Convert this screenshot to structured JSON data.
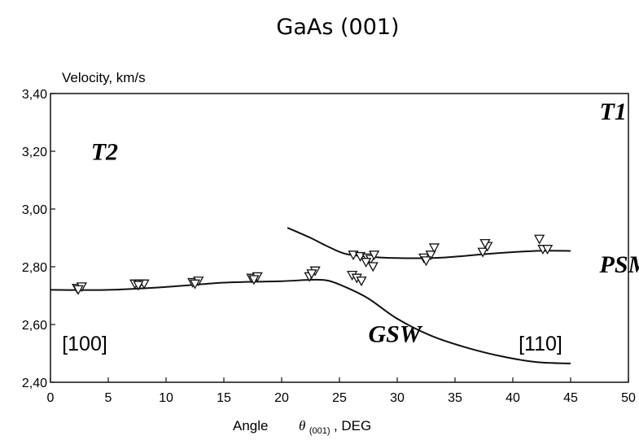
{
  "chart_data": {
    "type": "scatter",
    "title": "GaAs (001)",
    "ylabel": "Velocity, km/s",
    "xlabel_prefix": "Angle",
    "xlabel_symbol": "θ",
    "xlabel_subscript": "(001)",
    "xlabel_suffix": ", DEG",
    "xlim": [
      0,
      50
    ],
    "ylim": [
      2.4,
      3.4
    ],
    "x_ticks": [
      0,
      5,
      10,
      15,
      20,
      25,
      30,
      35,
      40,
      45,
      50
    ],
    "y_ticks": [
      2.4,
      2.6,
      2.8,
      3.0,
      3.2,
      3.4
    ],
    "y_tick_labels": [
      "2,40",
      "2,60",
      "2,80",
      "3,00",
      "3,20",
      "3,40"
    ],
    "grid": false,
    "marker": "open-triangle-down",
    "annotations": [
      {
        "text": "T1",
        "x": 47.5,
        "y": 3.31,
        "style": "bold"
      },
      {
        "text": "T2",
        "x": 3.5,
        "y": 3.17,
        "style": "bold"
      },
      {
        "text": "PSM",
        "x": 47.5,
        "y": 2.78,
        "style": "bold"
      },
      {
        "text": "GSW",
        "x": 27.5,
        "y": 2.54,
        "style": "bold"
      },
      {
        "text": "[100]",
        "x": 1.0,
        "y": 2.51,
        "style": "direction"
      },
      {
        "text": "[110]",
        "x": 40.5,
        "y": 2.51,
        "style": "direction"
      }
    ],
    "series": [
      {
        "kind": "line",
        "points": [
          [
            0,
            2.72
          ],
          [
            5,
            2.72
          ],
          [
            10,
            2.73
          ],
          [
            15,
            2.745
          ],
          [
            20,
            2.75
          ],
          [
            22.5,
            2.755
          ],
          [
            24,
            2.752
          ],
          [
            25.5,
            2.73
          ],
          [
            27.5,
            2.69
          ],
          [
            30,
            2.62
          ],
          [
            33,
            2.56
          ],
          [
            36,
            2.52
          ],
          [
            39,
            2.49
          ],
          [
            42,
            2.47
          ],
          [
            45,
            2.465
          ]
        ]
      },
      {
        "kind": "line",
        "points": [
          [
            20.5,
            2.935
          ],
          [
            22.5,
            2.9
          ],
          [
            24,
            2.87
          ],
          [
            25.5,
            2.845
          ],
          [
            27.5,
            2.835
          ],
          [
            30,
            2.83
          ],
          [
            33,
            2.83
          ],
          [
            35,
            2.835
          ],
          [
            38,
            2.845
          ],
          [
            42,
            2.855
          ],
          [
            45,
            2.855
          ]
        ]
      },
      {
        "kind": "markers",
        "points": [
          [
            2.3,
            2.725
          ],
          [
            2.7,
            2.73
          ],
          [
            2.4,
            2.72
          ],
          [
            7.3,
            2.74
          ],
          [
            7.7,
            2.74
          ],
          [
            8.1,
            2.74
          ],
          [
            7.6,
            2.735
          ],
          [
            12.3,
            2.745
          ],
          [
            12.8,
            2.75
          ],
          [
            12.5,
            2.74
          ],
          [
            17.4,
            2.76
          ],
          [
            17.9,
            2.765
          ],
          [
            17.6,
            2.755
          ],
          [
            22.4,
            2.765
          ],
          [
            22.9,
            2.785
          ],
          [
            22.6,
            2.775
          ],
          [
            26.1,
            2.77
          ],
          [
            26.5,
            2.76
          ],
          [
            26.9,
            2.75
          ],
          [
            26.2,
            2.84
          ],
          [
            26.8,
            2.835
          ],
          [
            27.4,
            2.83
          ],
          [
            27.7,
            2.825
          ],
          [
            28.0,
            2.84
          ],
          [
            27.3,
            2.815
          ],
          [
            27.9,
            2.8
          ],
          [
            32.3,
            2.83
          ],
          [
            32.9,
            2.84
          ],
          [
            32.5,
            2.82
          ],
          [
            33.2,
            2.865
          ],
          [
            37.4,
            2.85
          ],
          [
            37.8,
            2.87
          ],
          [
            37.6,
            2.88
          ],
          [
            42.3,
            2.895
          ],
          [
            42.6,
            2.86
          ],
          [
            43.0,
            2.86
          ]
        ]
      }
    ]
  }
}
